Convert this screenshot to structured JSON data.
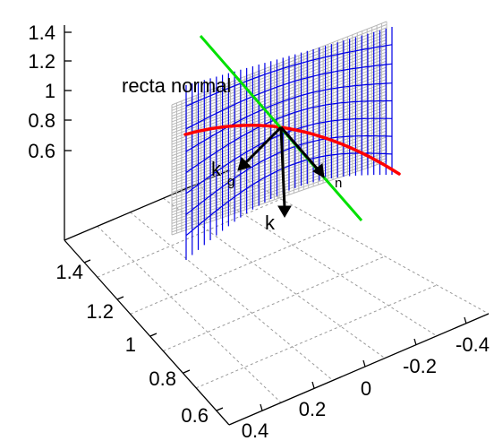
{
  "z_axis": {
    "ticks": [
      "1.4",
      "1.2",
      "1",
      "0.8",
      "0.6"
    ]
  },
  "left_axis": {
    "ticks": [
      "1.4",
      "1.2",
      "1",
      "0.8",
      "0.6"
    ]
  },
  "right_axis": {
    "ticks": [
      "-0.4",
      "-0.2",
      "0",
      "0.2",
      "0.4"
    ]
  },
  "annotations": {
    "normal_line": "recta normal",
    "kg_main": "k",
    "kg_sub": "g",
    "kn_sub": "n",
    "k_main": "k"
  },
  "colors": {
    "surface_grid": "#b8b8b8",
    "surface_mesh": "#0000e6",
    "curve": "#ff0000",
    "normal_line": "#00e000",
    "vectors": "#000000",
    "floor_grid": "#9a9a9a"
  }
}
